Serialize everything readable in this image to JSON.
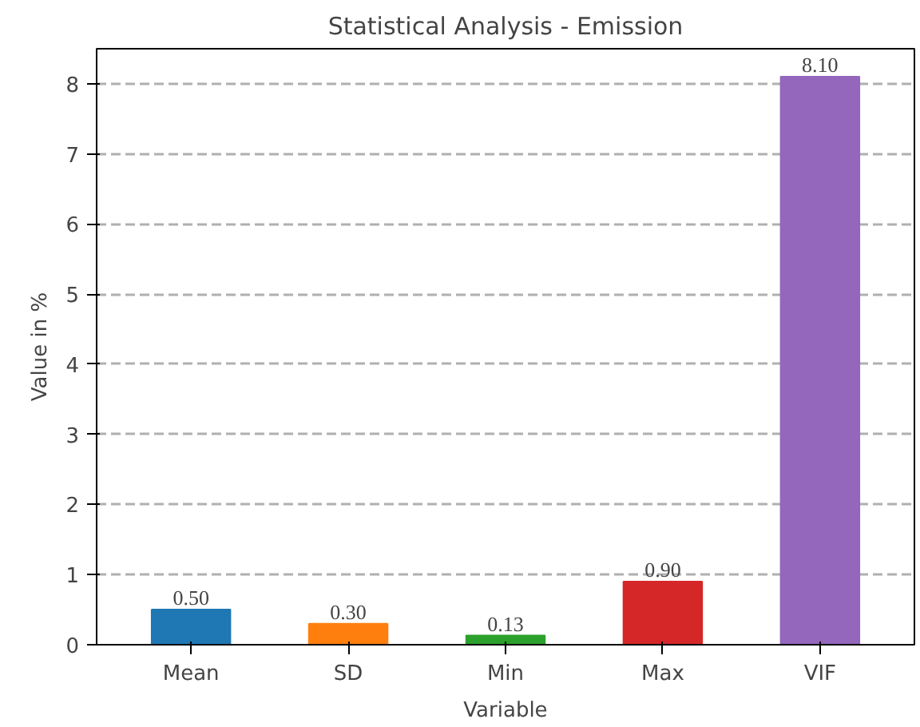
{
  "chart_data": {
    "type": "bar",
    "title": "Statistical Analysis - Emission",
    "xlabel": "Variable",
    "ylabel": "Value in %",
    "categories": [
      "Mean",
      "SD",
      "Min",
      "Max",
      "VIF"
    ],
    "values": [
      0.5,
      0.3,
      0.13,
      0.9,
      8.1
    ],
    "colors": [
      "#1f77b4",
      "#ff7f0e",
      "#2ca02c",
      "#d62728",
      "#9467bd"
    ],
    "value_labels": [
      "0.50",
      "0.30",
      "0.13",
      "0.90",
      "8.10"
    ],
    "ylim": [
      0,
      8.5
    ],
    "yticks": [
      0,
      1,
      2,
      3,
      4,
      5,
      6,
      7,
      8
    ],
    "grid": "y"
  }
}
